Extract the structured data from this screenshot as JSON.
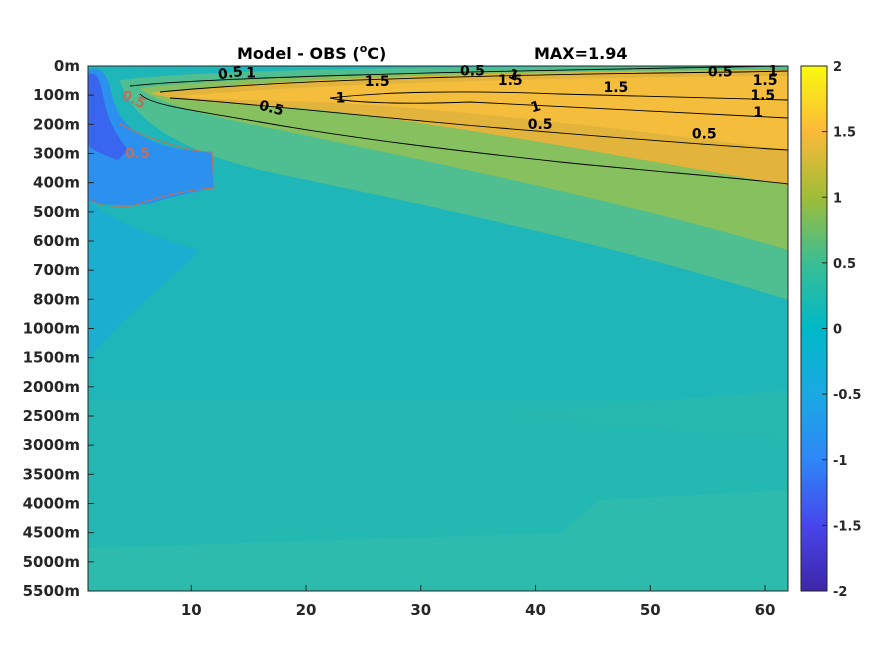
{
  "chart_data": {
    "type": "heatmap",
    "title": "Model - OBS (",
    "title_sup": "o",
    "title_unit": "C)",
    "max_label": "MAX=1.94",
    "x_ticks": [
      10,
      20,
      30,
      40,
      50,
      60
    ],
    "x_range": [
      1,
      62
    ],
    "y_tick_labels": [
      "0m",
      "100m",
      "200m",
      "300m",
      "400m",
      "500m",
      "600m",
      "700m",
      "800m",
      "1000m",
      "1500m",
      "2000m",
      "2500m",
      "3000m",
      "3500m",
      "4000m",
      "4500m",
      "5000m",
      "5500m"
    ],
    "colorbar": {
      "range": [
        -2,
        2
      ],
      "ticks": [
        "2",
        "1.5",
        "1",
        "0.5",
        "0",
        "-0.5",
        "-1",
        "-1.5",
        "-2"
      ]
    },
    "contour_levels": [
      -0.5,
      0.5,
      1,
      1.5
    ],
    "contour_labels": [
      {
        "text": "0.5",
        "x": 13.4,
        "level": 1,
        "rot": -8
      },
      {
        "text": "1",
        "x": 15.2,
        "level": 1,
        "rot": 0
      },
      {
        "text": "1.5",
        "x": 26.2,
        "level": 2.3,
        "rot": 0
      },
      {
        "text": "1",
        "x": 23.0,
        "level": 4.8,
        "rot": 0
      },
      {
        "text": "0.5",
        "x": 17.0,
        "level": 6.3,
        "rot": 14
      },
      {
        "text": "0.5",
        "x": 34.5,
        "level": 0.7,
        "rot": 0
      },
      {
        "text": "1",
        "x": 38.1,
        "level": 1.3,
        "rot": 25
      },
      {
        "text": "1.5",
        "x": 37.8,
        "level": 2.1,
        "rot": 0
      },
      {
        "text": "1.5",
        "x": 47.0,
        "level": 3.2,
        "rot": 0
      },
      {
        "text": "1",
        "x": 40.0,
        "level": 6.1,
        "rot": -15
      },
      {
        "text": "0.5",
        "x": 40.4,
        "level": 8.8,
        "rot": 0
      },
      {
        "text": "0.5",
        "x": 56.1,
        "level": 0.8,
        "rot": 0
      },
      {
        "text": "1",
        "x": 60.7,
        "level": 0.7,
        "rot": 0
      },
      {
        "text": "1.5",
        "x": 60.0,
        "level": 2.1,
        "rot": 0
      },
      {
        "text": "1.5",
        "x": 59.8,
        "level": 4.4,
        "rot": 0
      },
      {
        "text": "1",
        "x": 59.4,
        "level": 7.0,
        "rot": 0
      },
      {
        "text": "0.5",
        "x": 54.7,
        "level": 10.2,
        "rot": 0
      },
      {
        "text": "0.5",
        "x": 5.0,
        "level": 5.0,
        "rot": 25
      },
      {
        "text": "0.5",
        "x": 5.3,
        "level": 13.2,
        "rot": 0
      }
    ]
  }
}
